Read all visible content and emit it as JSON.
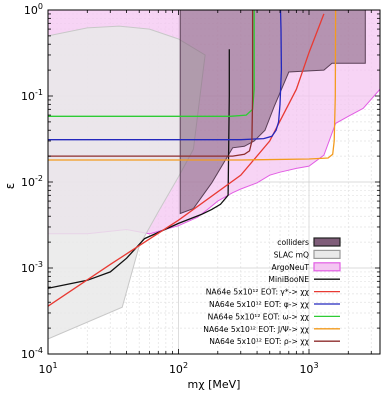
{
  "chart_data": {
    "type": "line",
    "xlabel": "mχ [MeV]",
    "ylabel": "ε",
    "xscale": "log",
    "yscale": "log",
    "xlim": [
      10,
      3500
    ],
    "ylim": [
      0.0001,
      1
    ],
    "grid": true,
    "legend_placement": "bottom-right",
    "x_tick_labels": [
      {
        "value": 10,
        "base": "10",
        "exp": "1"
      },
      {
        "value": 100,
        "base": "10",
        "exp": "2"
      },
      {
        "value": 1000,
        "base": "10",
        "exp": "3"
      }
    ],
    "y_tick_labels": [
      {
        "value": 0.0001,
        "base": "10",
        "exp": "-4"
      },
      {
        "value": 0.001,
        "base": "10",
        "exp": "-3"
      },
      {
        "value": 0.01,
        "base": "10",
        "exp": "-2"
      },
      {
        "value": 0.1,
        "base": "10",
        "exp": "-1"
      },
      {
        "value": 1,
        "base": "10",
        "exp": "0"
      }
    ],
    "regions": [
      {
        "name": "ArgoNeuT",
        "fill": "#f4c6f2",
        "fill_opacity": 0.75,
        "stroke": "#e25ee4",
        "points": [
          [
            10,
            1
          ],
          [
            10,
            0.0025
          ],
          [
            20,
            0.0025
          ],
          [
            40,
            0.0028
          ],
          [
            60,
            0.0025
          ],
          [
            100,
            0.0031
          ],
          [
            140,
            0.0039
          ],
          [
            170,
            0.0049
          ],
          [
            200,
            0.006
          ],
          [
            260,
            0.0075
          ],
          [
            300,
            0.0083
          ],
          [
            400,
            0.0098
          ],
          [
            500,
            0.012
          ],
          [
            600,
            0.013
          ],
          [
            800,
            0.0144
          ],
          [
            1000,
            0.0153
          ],
          [
            1300,
            0.0205
          ],
          [
            1600,
            0.048
          ],
          [
            2000,
            0.058
          ],
          [
            2600,
            0.072
          ],
          [
            3500,
            0.12
          ],
          [
            3500,
            1
          ]
        ]
      },
      {
        "name": "SLAC mQ",
        "fill": "#e9e9e9",
        "fill_opacity": 0.85,
        "stroke": "#c8c8c8",
        "points": [
          [
            10,
            0.5
          ],
          [
            20,
            0.62
          ],
          [
            35,
            0.65
          ],
          [
            60,
            0.6
          ],
          [
            100,
            0.46
          ],
          [
            160,
            0.3
          ],
          [
            130,
            0.024
          ],
          [
            100,
            0.0115
          ],
          [
            70,
            0.0045
          ],
          [
            50,
            0.0018
          ],
          [
            37,
            0.00035
          ],
          [
            10,
            0.00015
          ]
        ]
      },
      {
        "name": "colliders",
        "fill": "#7f5d79",
        "fill_opacity": 0.55,
        "stroke": "#5a3f56",
        "points": [
          [
            103,
            1
          ],
          [
            103,
            0.0043
          ],
          [
            130,
            0.0049
          ],
          [
            180,
            0.0098
          ],
          [
            260,
            0.025
          ],
          [
            320,
            0.026
          ],
          [
            380,
            0.03
          ],
          [
            460,
            0.04
          ],
          [
            540,
            0.075
          ],
          [
            700,
            0.19
          ],
          [
            1000,
            0.196
          ],
          [
            1300,
            0.2
          ],
          [
            1500,
            0.24
          ],
          [
            2700,
            0.24
          ],
          [
            2700,
            1
          ]
        ]
      }
    ],
    "series": [
      {
        "name": "MiniBooNE",
        "color": "#111111",
        "x": [
          10,
          20,
          30,
          40,
          55,
          100,
          150,
          180,
          210,
          240,
          245,
          245
        ],
        "y": [
          0.00058,
          0.00072,
          0.0009,
          0.0013,
          0.0022,
          0.0033,
          0.0042,
          0.0048,
          0.0055,
          0.007,
          0.1,
          0.35
        ]
      },
      {
        "name": "NA64e 5x10¹² EOT: γ*-> χχ",
        "color": "#e83a33",
        "x": [
          10,
          30,
          100,
          300,
          500,
          800,
          1000,
          1300
        ],
        "y": [
          0.00036,
          0.0011,
          0.0036,
          0.012,
          0.03,
          0.12,
          0.32,
          0.9
        ]
      },
      {
        "name": "NA64e 5x10¹² EOT: φ-> χχ",
        "color": "#2327bd",
        "x": [
          10,
          150,
          300,
          450,
          520,
          560,
          585,
          600,
          615,
          610,
          605
        ],
        "y": [
          0.031,
          0.031,
          0.031,
          0.032,
          0.034,
          0.04,
          0.05,
          0.08,
          0.2,
          0.6,
          1
        ]
      },
      {
        "name": "NA64e 5x10¹² EOT: ω-> χχ",
        "color": "#2ecc35",
        "x": [
          10,
          120,
          250,
          330,
          370,
          380,
          380
        ],
        "y": [
          0.058,
          0.058,
          0.058,
          0.06,
          0.07,
          0.12,
          1
        ]
      },
      {
        "name": "NA64e 5x10¹² EOT: J/Ψ-> χχ",
        "color": "#f39b1e",
        "x": [
          10,
          300,
          1000,
          1400,
          1520,
          1560,
          1590,
          1600
        ],
        "y": [
          0.018,
          0.018,
          0.0185,
          0.019,
          0.021,
          0.03,
          0.1,
          1
        ]
      },
      {
        "name": "NA64e 5x10¹² EOT: ρ-> χχ",
        "color": "#8e2d2d",
        "x": [
          10,
          150,
          260,
          320,
          350,
          365,
          370,
          370
        ],
        "y": [
          0.02,
          0.02,
          0.02,
          0.021,
          0.023,
          0.03,
          0.1,
          1
        ]
      }
    ],
    "legend": [
      {
        "label": "colliders",
        "kind": "patch",
        "fill": "#7f5d79",
        "stroke": "#222222"
      },
      {
        "label": "SLAC mQ",
        "kind": "patch",
        "fill": "#e9e9e9",
        "stroke": "#9a9a9a"
      },
      {
        "label": "ArgoNeuT",
        "kind": "patch",
        "fill": "#f4c6f2",
        "stroke": "#e25ee4"
      },
      {
        "label": "MiniBooNE",
        "kind": "line",
        "color": "#111111"
      },
      {
        "label": "NA64e 5x10¹² EOT: γ*-> χχ",
        "kind": "line",
        "color": "#e83a33"
      },
      {
        "label": "NA64e 5x10¹² EOT: φ-> χχ",
        "kind": "line",
        "color": "#2327bd"
      },
      {
        "label": "NA64e 5x10¹² EOT: ω-> χχ",
        "kind": "line",
        "color": "#2ecc35"
      },
      {
        "label": "NA64e 5x10¹² EOT: J/Ψ-> χχ",
        "kind": "line",
        "color": "#f39b1e"
      },
      {
        "label": "NA64e 5x10¹² EOT: ρ-> χχ",
        "kind": "line",
        "color": "#8e2d2d"
      }
    ]
  }
}
